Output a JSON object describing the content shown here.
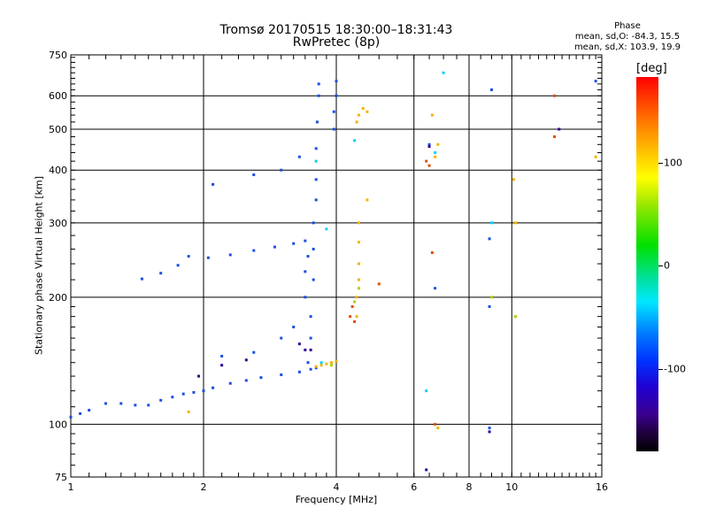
{
  "header": {
    "title_line1": "Tromsø 20170515 18:30:00–18:31:43",
    "title_line2": "RwPretec (8p)"
  },
  "phase_info": {
    "heading": "Phase",
    "line_o": "mean, sd,O: -84.3, 15.5",
    "line_x": "mean, sd,X: 103.9, 19.9"
  },
  "colorbar": {
    "unit": "[deg]",
    "ticks": [
      "100",
      "0",
      "-100"
    ],
    "colors": [
      "#ff0000",
      "#ffd400",
      "#00e000",
      "#00e8ff",
      "#0030ff",
      "#3a0090",
      "#000000"
    ]
  },
  "chart_data": {
    "type": "scatter",
    "title": "Tromsø 20170515 18:30:00–18:31:43",
    "subtitle": "RwPretec (8p)",
    "xlabel": "Frequency [MHz]",
    "ylabel": "Stationary phase Virtual Height [km]",
    "x_scale": "log",
    "y_scale": "log",
    "xlim": [
      1,
      16
    ],
    "ylim": [
      75,
      750
    ],
    "x_ticks": [
      "1",
      "2",
      "4",
      "6",
      "8",
      "10",
      "16"
    ],
    "y_ticks": [
      "75",
      "100",
      "200",
      "300",
      "400",
      "500",
      "600",
      "750"
    ],
    "grid": true,
    "series": [
      {
        "color": "#1a4fe0",
        "points": [
          [
            1.0,
            104
          ],
          [
            1.05,
            106
          ],
          [
            1.1,
            108
          ],
          [
            1.2,
            112
          ],
          [
            1.3,
            112
          ],
          [
            1.4,
            111
          ],
          [
            1.5,
            111
          ],
          [
            1.6,
            114
          ],
          [
            1.7,
            116
          ],
          [
            1.8,
            118
          ],
          [
            1.9,
            119
          ],
          [
            2.0,
            120
          ],
          [
            2.1,
            122
          ],
          [
            2.3,
            125
          ],
          [
            2.5,
            127
          ],
          [
            2.7,
            129
          ],
          [
            3.0,
            131
          ],
          [
            3.3,
            133
          ],
          [
            3.5,
            135
          ],
          [
            3.6,
            136
          ],
          [
            1.45,
            221
          ],
          [
            1.6,
            228
          ],
          [
            1.75,
            238
          ],
          [
            1.85,
            250
          ],
          [
            2.05,
            248
          ],
          [
            2.3,
            252
          ],
          [
            2.6,
            258
          ],
          [
            2.9,
            263
          ],
          [
            3.2,
            268
          ],
          [
            3.4,
            272
          ],
          [
            2.1,
            370
          ],
          [
            2.6,
            390
          ],
          [
            3.0,
            400
          ],
          [
            3.3,
            430
          ],
          [
            3.55,
            220
          ],
          [
            3.55,
            260
          ],
          [
            3.55,
            300
          ],
          [
            3.6,
            340
          ],
          [
            3.6,
            380
          ],
          [
            3.6,
            450
          ],
          [
            3.62,
            520
          ],
          [
            3.65,
            600
          ],
          [
            3.65,
            640
          ],
          [
            3.4,
            200
          ],
          [
            3.4,
            230
          ],
          [
            3.45,
            250
          ],
          [
            3.5,
            180
          ],
          [
            3.5,
            160
          ],
          [
            3.45,
            140
          ],
          [
            3.95,
            500
          ],
          [
            3.95,
            550
          ],
          [
            4.0,
            600
          ],
          [
            4.0,
            650
          ],
          [
            2.2,
            145
          ],
          [
            2.6,
            148
          ],
          [
            3.0,
            160
          ],
          [
            3.2,
            170
          ],
          [
            6.5,
            460
          ],
          [
            6.7,
            210
          ],
          [
            8.9,
            275
          ],
          [
            8.9,
            190
          ],
          [
            9.0,
            620
          ],
          [
            8.9,
            98
          ],
          [
            15.5,
            650
          ]
        ]
      },
      {
        "color": "#f2b400",
        "points": [
          [
            3.6,
            137
          ],
          [
            3.7,
            138
          ],
          [
            3.8,
            139
          ],
          [
            3.9,
            140
          ],
          [
            4.0,
            141
          ],
          [
            4.45,
            180
          ],
          [
            4.45,
            200
          ],
          [
            4.5,
            220
          ],
          [
            4.5,
            240
          ],
          [
            4.5,
            270
          ],
          [
            4.5,
            300
          ],
          [
            4.45,
            520
          ],
          [
            4.5,
            540
          ],
          [
            4.6,
            560
          ],
          [
            4.7,
            550
          ],
          [
            4.7,
            340
          ],
          [
            6.6,
            540
          ],
          [
            6.8,
            460
          ],
          [
            6.7,
            430
          ],
          [
            10.1,
            380
          ],
          [
            10.2,
            300
          ],
          [
            15.5,
            430
          ],
          [
            1.85,
            107
          ],
          [
            6.8,
            98
          ]
        ]
      },
      {
        "color": "#e05000",
        "points": [
          [
            4.3,
            180
          ],
          [
            4.35,
            190
          ],
          [
            4.4,
            175
          ],
          [
            5.0,
            215
          ],
          [
            6.4,
            420
          ],
          [
            6.5,
            410
          ],
          [
            6.6,
            255
          ],
          [
            12.5,
            480
          ],
          [
            12.5,
            600
          ],
          [
            6.7,
            100
          ]
        ]
      },
      {
        "color": "#00d0ff",
        "points": [
          [
            3.7,
            140
          ],
          [
            3.8,
            290
          ],
          [
            3.6,
            420
          ],
          [
            6.4,
            120
          ],
          [
            9.0,
            300
          ],
          [
            7.0,
            680
          ],
          [
            4.4,
            470
          ],
          [
            6.7,
            440
          ]
        ]
      },
      {
        "color": "#30009a",
        "points": [
          [
            3.4,
            150
          ],
          [
            3.5,
            150
          ],
          [
            3.3,
            155
          ],
          [
            2.5,
            142
          ],
          [
            2.2,
            138
          ],
          [
            1.95,
            130
          ],
          [
            6.4,
            78
          ],
          [
            8.9,
            96
          ],
          [
            12.8,
            500
          ],
          [
            6.5,
            455
          ]
        ]
      },
      {
        "color": "#b0d000",
        "points": [
          [
            4.4,
            195
          ],
          [
            4.5,
            210
          ],
          [
            9.0,
            200
          ],
          [
            10.2,
            180
          ],
          [
            3.9,
            138
          ]
        ]
      }
    ]
  }
}
